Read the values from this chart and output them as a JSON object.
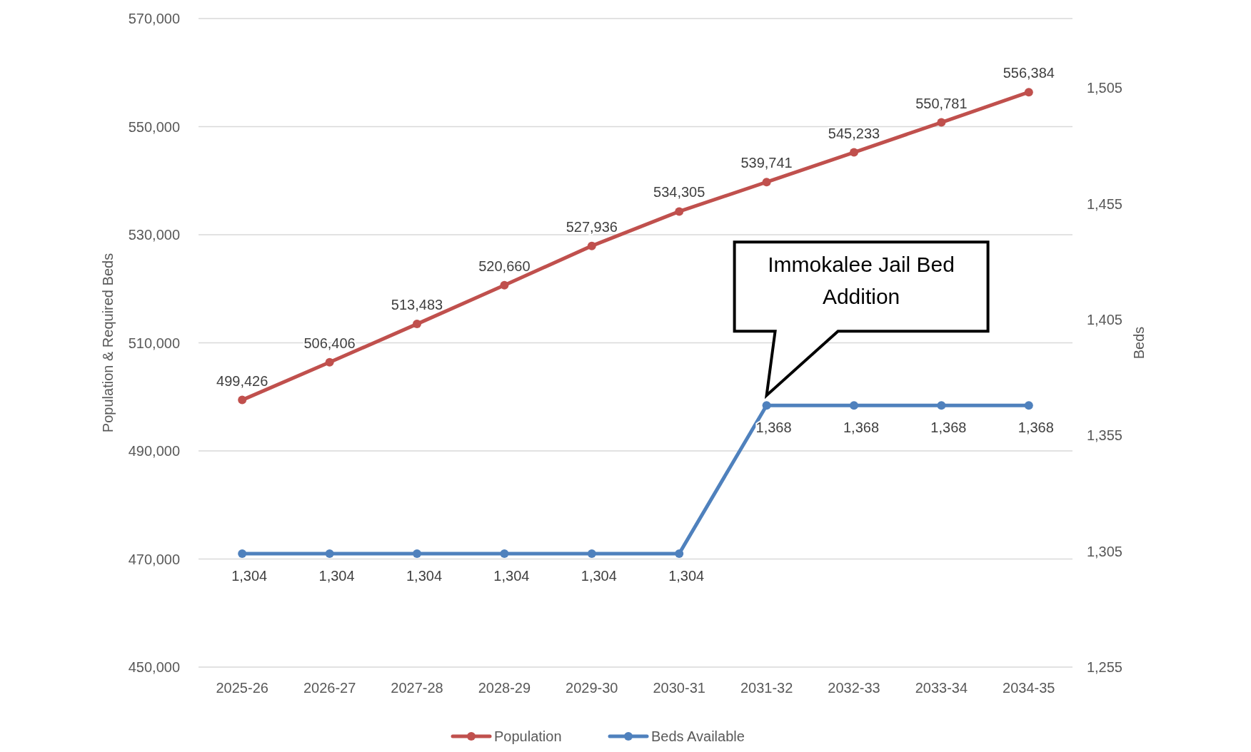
{
  "chart_data": {
    "type": "line",
    "categories": [
      "2025-26",
      "2026-27",
      "2027-28",
      "2028-29",
      "2029-30",
      "2030-31",
      "2031-32",
      "2032-33",
      "2033-34",
      "2034-35"
    ],
    "series": [
      {
        "name": "Population",
        "color": "#c0504d",
        "values": [
          499426,
          506406,
          513483,
          520660,
          527936,
          534305,
          539741,
          545233,
          550781,
          556384
        ],
        "value_labels": [
          "499,426",
          "506,406",
          "513,483",
          "520,660",
          "527,936",
          "534,305",
          "539,741",
          "545,233",
          "550,781",
          "556,384"
        ]
      },
      {
        "name": "Beds Available",
        "color": "#4f81bd",
        "axis": "y2",
        "values": [
          1304,
          1304,
          1304,
          1304,
          1304,
          1304,
          1368,
          1368,
          1368,
          1368
        ],
        "value_labels": [
          "1,304",
          "1,304",
          "1,304",
          "1,304",
          "1,304",
          "1,304",
          "1,368",
          "1,368",
          "1,368",
          "1,368"
        ]
      }
    ],
    "ylabel": "Population & Required Beds",
    "y2label": "Beds",
    "ylim": [
      450000,
      570000
    ],
    "yticks": [
      {
        "value": 450000,
        "label": "450,000"
      },
      {
        "value": 470000,
        "label": "470,000"
      },
      {
        "value": 490000,
        "label": "490,000"
      },
      {
        "value": 510000,
        "label": "510,000"
      },
      {
        "value": 530000,
        "label": "530,000"
      },
      {
        "value": 550000,
        "label": "550,000"
      },
      {
        "value": 570000,
        "label": "570,000"
      }
    ],
    "y2lim": [
      1255,
      1535
    ],
    "y2ticks": [
      {
        "value": 1255,
        "label": "1,255"
      },
      {
        "value": 1305,
        "label": "1,305"
      },
      {
        "value": 1355,
        "label": "1,355"
      },
      {
        "value": 1405,
        "label": "1,405"
      },
      {
        "value": 1455,
        "label": "1,455"
      },
      {
        "value": 1505,
        "label": "1,505"
      }
    ],
    "annotations": [
      "Immokalee Jail Bed Addition"
    ],
    "grid": "y",
    "legend": "bottom",
    "marker": "circle",
    "line_style": "solid"
  }
}
